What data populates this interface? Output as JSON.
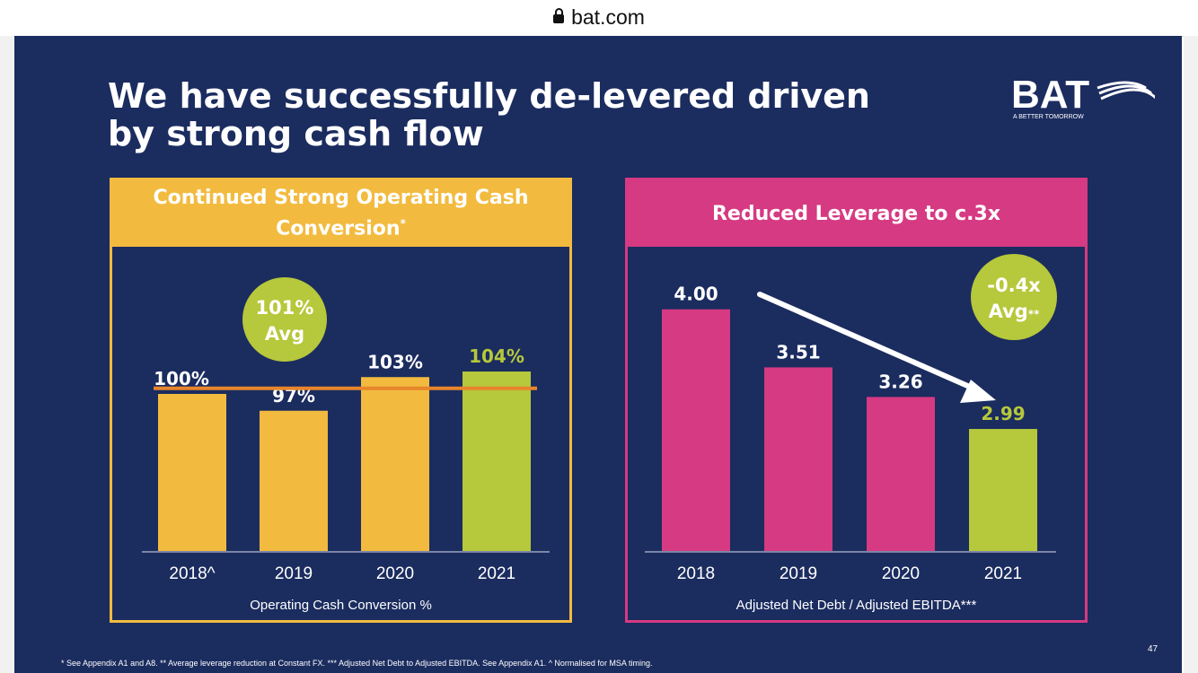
{
  "browser": {
    "url": "bat.com"
  },
  "slide": {
    "title": "We have successfully de-levered driven by strong cash flow",
    "logo": {
      "text": "BAT",
      "tagline": "A BETTER TOMORROW"
    },
    "page_number": "47",
    "footnote": "* See Appendix A1 and A8. ** Average leverage reduction at Constant FX. *** Adjusted Net Debt to Adjusted EBITDA. See Appendix A1. ^ Normalised for MSA timing."
  },
  "colors": {
    "background": "#1b2c5f",
    "yellow": "#f2bb3f",
    "magenta": "#d63a82",
    "green": "#b6c83b",
    "orange_line": "#e8852b",
    "white": "#ffffff"
  },
  "chart_data": [
    {
      "type": "bar",
      "title": "Continued Strong Operating Cash Conversion",
      "title_mark": "*",
      "xlabel": "Operating Cash Conversion %",
      "categories": [
        "2018^",
        "2019",
        "2020",
        "2021"
      ],
      "values": [
        100,
        97,
        103,
        104
      ],
      "value_labels": [
        "100%",
        "97%",
        "103%",
        "104%"
      ],
      "bar_colors": [
        "#f2bb3f",
        "#f2bb3f",
        "#f2bb3f",
        "#b6c83b"
      ],
      "reference_line": {
        "value": 101
      },
      "badge": {
        "line1": "101%",
        "line2": "Avg"
      },
      "grid": false
    },
    {
      "type": "bar",
      "title": "Reduced Leverage to c.3x",
      "xlabel": "Adjusted Net Debt / Adjusted EBITDA***",
      "categories": [
        "2018",
        "2019",
        "2020",
        "2021"
      ],
      "values": [
        4.0,
        3.51,
        3.26,
        2.99
      ],
      "value_labels": [
        "4.00",
        "3.51",
        "3.26",
        "2.99"
      ],
      "bar_colors": [
        "#d63a82",
        "#d63a82",
        "#d63a82",
        "#b6c83b"
      ],
      "badge": {
        "line1": "-0.4x",
        "line2": "Avg",
        "mark": "**"
      },
      "trend_arrow": true,
      "grid": false
    }
  ]
}
